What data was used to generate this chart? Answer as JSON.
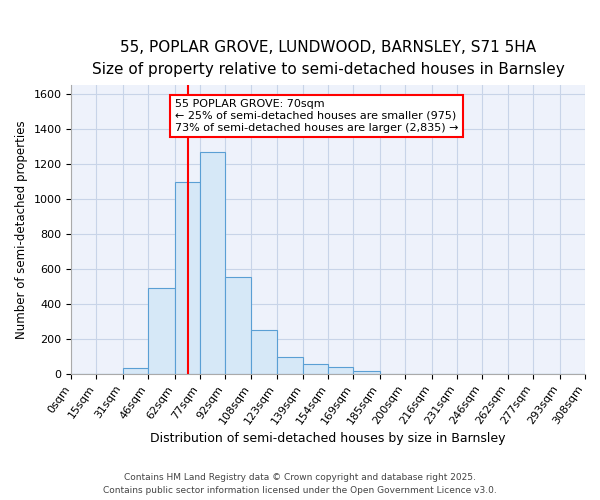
{
  "title": "55, POPLAR GROVE, LUNDWOOD, BARNSLEY, S71 5HA",
  "subtitle": "Size of property relative to semi-detached houses in Barnsley",
  "xlabel": "Distribution of semi-detached houses by size in Barnsley",
  "ylabel": "Number of semi-detached properties",
  "bin_edges": [
    0,
    15,
    31,
    46,
    62,
    77,
    92,
    108,
    123,
    139,
    154,
    169,
    185,
    200,
    216,
    231,
    246,
    262,
    277,
    293,
    308
  ],
  "bar_heights": [
    0,
    0,
    35,
    490,
    1100,
    1270,
    555,
    250,
    95,
    60,
    40,
    20,
    0,
    0,
    0,
    0,
    0,
    0,
    0,
    0
  ],
  "bar_face_color": "#d6e8f7",
  "bar_edge_color": "#5a9fd4",
  "property_line_x": 70,
  "property_line_color": "red",
  "annotation_line1": "55 POPLAR GROVE: 70sqm",
  "annotation_line2": "← 25% of semi-detached houses are smaller (975)",
  "annotation_line3": "73% of semi-detached houses are larger (2,835) →",
  "annotation_box_facecolor": "white",
  "annotation_box_edgecolor": "red",
  "ylim": [
    0,
    1650
  ],
  "yticks": [
    0,
    200,
    400,
    600,
    800,
    1000,
    1200,
    1400,
    1600
  ],
  "bg_color": "#eef2fb",
  "grid_color": "#c8d4e8",
  "footer_text": "Contains HM Land Registry data © Crown copyright and database right 2025.\nContains public sector information licensed under the Open Government Licence v3.0.",
  "title_fontsize": 11,
  "subtitle_fontsize": 9.5,
  "xlabel_fontsize": 9,
  "ylabel_fontsize": 8.5,
  "tick_fontsize": 8,
  "annotation_fontsize": 8
}
